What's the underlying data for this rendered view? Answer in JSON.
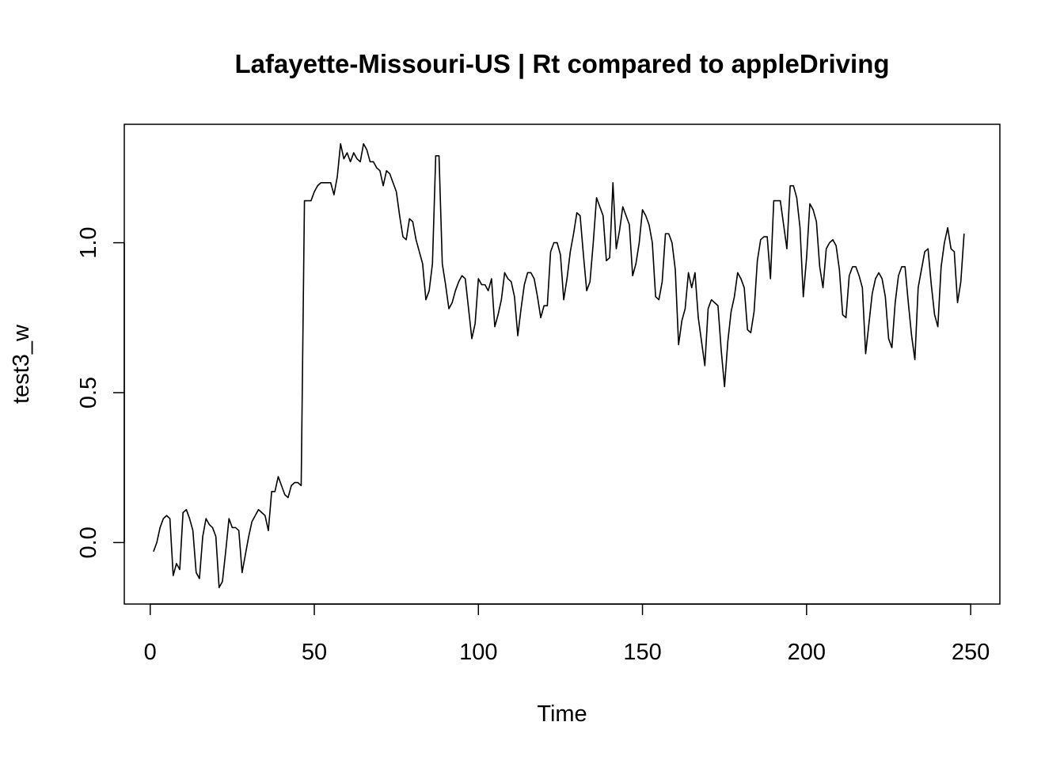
{
  "chart_data": {
    "type": "line",
    "title": "Lafayette-Missouri-US | Rt compared to appleDriving",
    "xlabel": "Time",
    "ylabel": "test3_w",
    "xlim": [
      -7.9,
      258.9
    ],
    "ylim": [
      -0.205,
      1.395
    ],
    "x_ticks": [
      0,
      50,
      100,
      150,
      200,
      250
    ],
    "y_ticks": [
      0.0,
      0.5,
      1.0
    ],
    "x_tick_labels": [
      "0",
      "50",
      "100",
      "150",
      "200",
      "250"
    ],
    "y_tick_labels": [
      "0.0",
      "0.5",
      "1.0"
    ],
    "grid": false,
    "line_color": "#000000",
    "series": [
      {
        "x_start": 1,
        "x_step": 1,
        "values": [
          -0.03,
          0.0,
          0.05,
          0.08,
          0.09,
          0.08,
          -0.11,
          -0.07,
          -0.09,
          0.1,
          0.11,
          0.08,
          0.04,
          -0.1,
          -0.12,
          0.02,
          0.08,
          0.06,
          0.05,
          0.02,
          -0.15,
          -0.13,
          -0.03,
          0.08,
          0.05,
          0.05,
          0.04,
          -0.1,
          -0.04,
          0.02,
          0.07,
          0.09,
          0.11,
          0.1,
          0.09,
          0.04,
          0.17,
          0.17,
          0.22,
          0.19,
          0.16,
          0.15,
          0.19,
          0.2,
          0.2,
          0.19,
          1.14,
          1.14,
          1.14,
          1.17,
          1.19,
          1.2,
          1.2,
          1.2,
          1.2,
          1.16,
          1.22,
          1.33,
          1.28,
          1.3,
          1.27,
          1.3,
          1.28,
          1.27,
          1.33,
          1.31,
          1.27,
          1.27,
          1.25,
          1.24,
          1.19,
          1.24,
          1.23,
          1.2,
          1.17,
          1.09,
          1.02,
          1.01,
          1.08,
          1.07,
          1.01,
          0.97,
          0.93,
          0.81,
          0.84,
          0.93,
          1.29,
          1.29,
          0.93,
          0.86,
          0.78,
          0.8,
          0.84,
          0.87,
          0.89,
          0.88,
          0.78,
          0.68,
          0.73,
          0.88,
          0.86,
          0.86,
          0.84,
          0.88,
          0.72,
          0.76,
          0.81,
          0.9,
          0.88,
          0.87,
          0.82,
          0.69,
          0.78,
          0.86,
          0.9,
          0.9,
          0.88,
          0.82,
          0.75,
          0.79,
          0.79,
          0.97,
          1.0,
          1.0,
          0.96,
          0.81,
          0.88,
          0.97,
          1.03,
          1.1,
          1.09,
          0.96,
          0.84,
          0.87,
          1.0,
          1.15,
          1.12,
          1.09,
          0.94,
          0.95,
          1.2,
          0.98,
          1.04,
          1.12,
          1.09,
          1.06,
          0.89,
          0.93,
          1.0,
          1.11,
          1.09,
          1.06,
          1.0,
          0.82,
          0.81,
          0.87,
          1.03,
          1.03,
          1.0,
          0.91,
          0.66,
          0.74,
          0.78,
          0.9,
          0.85,
          0.9,
          0.75,
          0.67,
          0.59,
          0.78,
          0.81,
          0.8,
          0.79,
          0.64,
          0.52,
          0.67,
          0.77,
          0.82,
          0.9,
          0.88,
          0.85,
          0.71,
          0.7,
          0.77,
          0.94,
          1.01,
          1.02,
          1.02,
          0.88,
          1.14,
          1.14,
          1.14,
          1.06,
          0.98,
          1.19,
          1.19,
          1.15,
          1.05,
          0.82,
          0.95,
          1.13,
          1.11,
          1.07,
          0.92,
          0.85,
          0.98,
          1.0,
          1.01,
          0.99,
          0.91,
          0.76,
          0.75,
          0.89,
          0.92,
          0.92,
          0.89,
          0.85,
          0.63,
          0.73,
          0.83,
          0.88,
          0.9,
          0.88,
          0.82,
          0.68,
          0.65,
          0.8,
          0.89,
          0.92,
          0.92,
          0.8,
          0.69,
          0.61,
          0.85,
          0.91,
          0.97,
          0.98,
          0.86,
          0.76,
          0.72,
          0.92,
          1.0,
          1.05,
          0.98,
          0.97,
          0.8,
          0.87,
          1.03
        ]
      }
    ]
  }
}
